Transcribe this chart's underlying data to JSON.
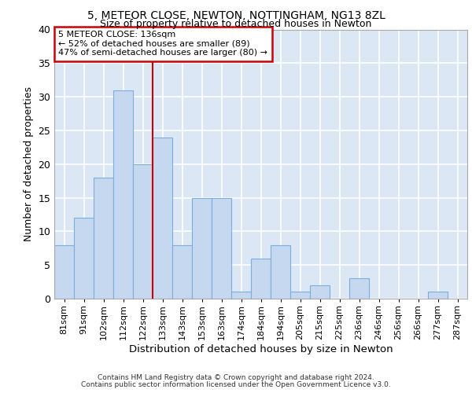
{
  "title1": "5, METEOR CLOSE, NEWTON, NOTTINGHAM, NG13 8ZL",
  "title2": "Size of property relative to detached houses in Newton",
  "xlabel": "Distribution of detached houses by size in Newton",
  "ylabel": "Number of detached properties",
  "categories": [
    "81sqm",
    "91sqm",
    "102sqm",
    "112sqm",
    "122sqm",
    "133sqm",
    "143sqm",
    "153sqm",
    "163sqm",
    "174sqm",
    "184sqm",
    "194sqm",
    "205sqm",
    "215sqm",
    "225sqm",
    "236sqm",
    "246sqm",
    "256sqm",
    "266sqm",
    "277sqm",
    "287sqm"
  ],
  "values": [
    8,
    12,
    18,
    31,
    20,
    24,
    8,
    15,
    15,
    1,
    6,
    8,
    1,
    2,
    0,
    3,
    0,
    0,
    0,
    1,
    0
  ],
  "bar_color": "#c5d8f0",
  "bar_edge_color": "#7aaedb",
  "background_color": "#dce7f5",
  "grid_color": "#ffffff",
  "vline_x": 4.5,
  "vline_color": "#cc0000",
  "annotation_text": "5 METEOR CLOSE: 136sqm\n← 52% of detached houses are smaller (89)\n47% of semi-detached houses are larger (80) →",
  "annotation_box_color": "#ffffff",
  "annotation_box_edge_color": "#cc0000",
  "footer1": "Contains HM Land Registry data © Crown copyright and database right 2024.",
  "footer2": "Contains public sector information licensed under the Open Government Licence v3.0.",
  "ylim": [
    0,
    40
  ],
  "yticks": [
    0,
    5,
    10,
    15,
    20,
    25,
    30,
    35,
    40
  ]
}
